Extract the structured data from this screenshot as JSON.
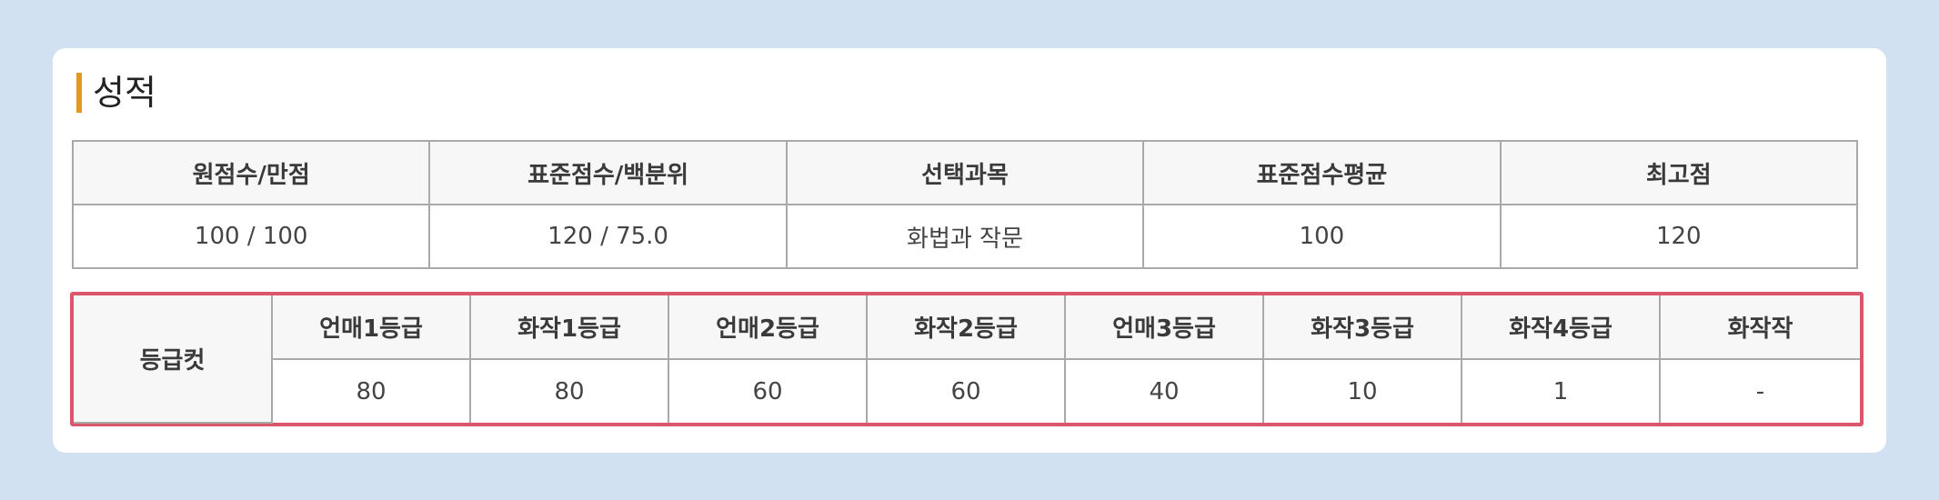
{
  "section": {
    "title": "성적"
  },
  "score_table": {
    "headers": [
      "원점수/만점",
      "표준점수/백분위",
      "선택과목",
      "표준점수평균",
      "최고점"
    ],
    "row": [
      "100 / 100",
      "120 / 75.0",
      "화법과 작문",
      "100",
      "120"
    ]
  },
  "cutoff_table": {
    "row_label": "등급컷",
    "headers": [
      "언매1등급",
      "화작1등급",
      "언매2등급",
      "화작2등급",
      "언매3등급",
      "화작3등급",
      "화작4등급",
      "화작작"
    ],
    "values": [
      "80",
      "80",
      "60",
      "60",
      "40",
      "10",
      "1",
      "-"
    ]
  },
  "colors": {
    "background": "#d2e1f1",
    "panel": "#ffffff",
    "title_accent": "#e19a1f",
    "highlight_border": "#d9566b",
    "header_bg": "#f7f7f7",
    "grid": "#a9a9a9"
  }
}
